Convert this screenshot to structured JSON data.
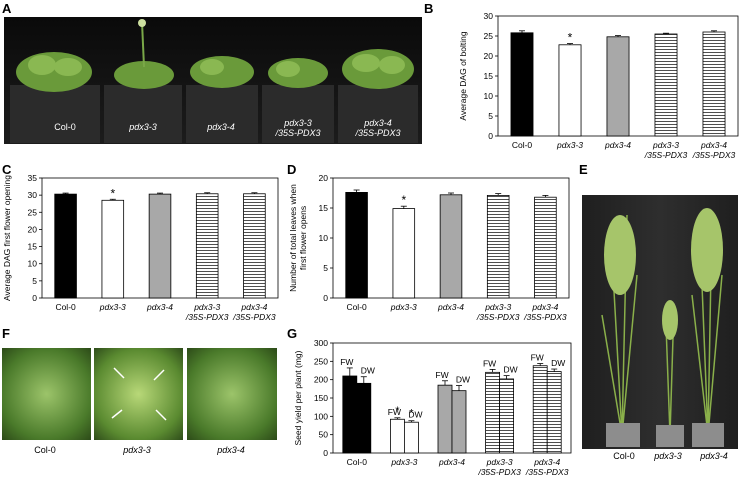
{
  "panels": {
    "A": {
      "letter": "A",
      "labels": [
        "Col-0",
        "pdx3-3",
        "pdx3-4",
        "pdx3-3\n/35S-PDX3",
        "pdx3-4\n/35S-PDX3"
      ]
    },
    "E": {
      "letter": "E",
      "labels": [
        "Col-0",
        "pdx3-3",
        "pdx3-4"
      ]
    },
    "F": {
      "letter": "F",
      "labels": [
        "Col-0",
        "pdx3-3",
        "pdx3-4"
      ]
    }
  },
  "chart_data": [
    {
      "panel": "B",
      "type": "bar",
      "ylabel": "Average DAG of bolting",
      "ylim": [
        0,
        30
      ],
      "yticks": [
        0,
        5,
        10,
        15,
        20,
        25,
        30
      ],
      "categories": [
        "Col-0",
        "pdx3-3",
        "pdx3-4",
        "pdx3-3\n/35S-PDX3",
        "pdx3-4\n/35S-PDX3"
      ],
      "values": [
        25.8,
        22.8,
        24.8,
        25.5,
        26.0
      ],
      "errors": [
        0.5,
        0.3,
        0.3,
        0.2,
        0.3
      ],
      "fills": [
        "black",
        "white",
        "gray",
        "hlines",
        "hlines"
      ],
      "significance": [
        "",
        "*",
        "",
        "",
        ""
      ]
    },
    {
      "panel": "C",
      "type": "bar",
      "ylabel": "Average DAG first flower opening",
      "ylim": [
        0,
        35
      ],
      "yticks": [
        0,
        5,
        10,
        15,
        20,
        25,
        30,
        35
      ],
      "categories": [
        "Col-0",
        "pdx3-3",
        "pdx3-4",
        "pdx3-3\n/35S-PDX3",
        "pdx3-4\n/35S-PDX3"
      ],
      "values": [
        30.3,
        28.5,
        30.3,
        30.4,
        30.4
      ],
      "errors": [
        0.3,
        0.3,
        0.3,
        0.3,
        0.3
      ],
      "fills": [
        "black",
        "white",
        "gray",
        "hlines",
        "hlines"
      ],
      "significance": [
        "",
        "*",
        "",
        "",
        ""
      ]
    },
    {
      "panel": "D",
      "type": "bar",
      "ylabel": "Number of total leaves when\nfirst flower opens",
      "ylim": [
        0,
        20
      ],
      "yticks": [
        0,
        5,
        10,
        15,
        20
      ],
      "categories": [
        "Col-0",
        "pdx3-3",
        "pdx3-4",
        "pdx3-3\n/35S-PDX3",
        "pdx3-4\n/35S-PDX3"
      ],
      "values": [
        17.6,
        14.9,
        17.2,
        17.1,
        16.8
      ],
      "errors": [
        0.4,
        0.4,
        0.3,
        0.3,
        0.3
      ],
      "fills": [
        "black",
        "white",
        "gray",
        "hlines",
        "hlines"
      ],
      "significance": [
        "",
        "*",
        "",
        "",
        ""
      ]
    },
    {
      "panel": "G",
      "type": "bar",
      "ylabel": "Seed yield per plant (mg)",
      "ylim": [
        0,
        300
      ],
      "yticks": [
        0,
        50,
        100,
        150,
        200,
        250,
        300
      ],
      "categories": [
        "Col-0",
        "pdx3-3",
        "pdx3-4",
        "pdx3-3\n/35S-PDX3",
        "pdx3-4\n/35S-PDX3"
      ],
      "series": [
        {
          "name": "FW",
          "values": [
            210,
            92,
            185,
            220,
            238
          ],
          "errors": [
            22,
            4,
            12,
            8,
            6
          ]
        },
        {
          "name": "DW",
          "values": [
            190,
            84,
            170,
            202,
            222
          ],
          "errors": [
            18,
            4,
            14,
            9,
            7
          ]
        }
      ],
      "fills": [
        "black",
        "white",
        "gray",
        "hlines",
        "hlines"
      ],
      "significance": [
        "",
        "*",
        "",
        "",
        ""
      ]
    }
  ]
}
